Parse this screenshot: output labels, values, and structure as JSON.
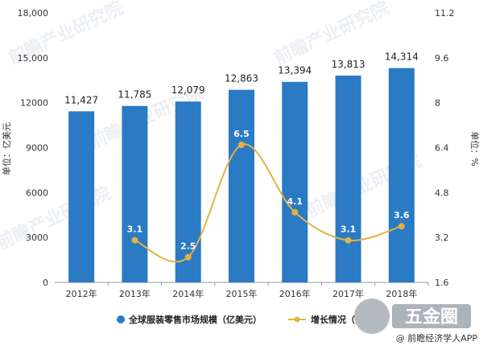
{
  "chart_data": {
    "type": "bar",
    "categories": [
      "2012年",
      "2013年",
      "2014年",
      "2015年",
      "2016年",
      "2017年",
      "2018年"
    ],
    "series": [
      {
        "name": "全球服装零售市场规模（亿美元）",
        "type": "bar",
        "axis": "left",
        "values": [
          11427,
          11785,
          12079,
          12863,
          13394,
          13813,
          14314
        ],
        "labels": [
          "11,427",
          "11,785",
          "12,079",
          "12,863",
          "13,394",
          "13,813",
          "14,314"
        ],
        "color": "#2b7ac4"
      },
      {
        "name": "增长情况（",
        "type": "line",
        "axis": "right",
        "values": [
          null,
          3.1,
          2.5,
          6.5,
          4.1,
          3.1,
          3.6
        ],
        "labels": [
          "",
          "3.1",
          "2.5",
          "6.5",
          "4.1",
          "3.1",
          "3.6"
        ],
        "color": "#e3b341"
      }
    ],
    "ylabel": "单位：亿美元",
    "y2label": "单位：%",
    "ylim": [
      0,
      18000
    ],
    "y2lim": [
      1.6,
      11.2
    ],
    "yticks": [
      "0",
      "3000",
      "6000",
      "9000",
      "12000",
      "15,000",
      "18,000"
    ],
    "y2ticks": [
      "1.6",
      "3.2",
      "4.8",
      "6.4",
      "8",
      "9.6",
      "11.2"
    ],
    "grid": false,
    "legend": "bottom"
  },
  "watermark": {
    "text": "前瞻产业研究院",
    "logo_text": "五金圈",
    "credit": "@ 前瞻经济学人APP"
  }
}
